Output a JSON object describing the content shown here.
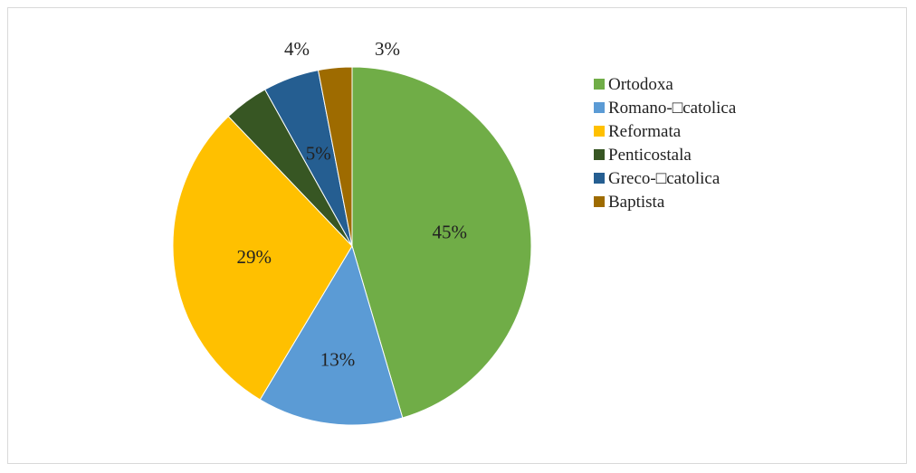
{
  "chart_data": {
    "type": "pie",
    "title": "",
    "start_angle_deg": 0,
    "direction": "clockwise",
    "legend_position": "right",
    "slices": [
      {
        "name": "Ortodoxa",
        "value": 45,
        "label": "45%",
        "color": "#70ad47"
      },
      {
        "name": "Romano-□catolica",
        "value": 13,
        "label": "13%",
        "color": "#5b9bd5"
      },
      {
        "name": "Reformata",
        "value": 29,
        "label": "29%",
        "color": "#ffc000"
      },
      {
        "name": "Penticostala",
        "value": 4,
        "label": "4%",
        "color": "#375623"
      },
      {
        "name": "Greco-□catolica",
        "value": 5,
        "label": "5%",
        "color": "#255e91"
      },
      {
        "name": "Baptista",
        "value": 3,
        "label": "3%",
        "color": "#9e6b00"
      }
    ]
  }
}
